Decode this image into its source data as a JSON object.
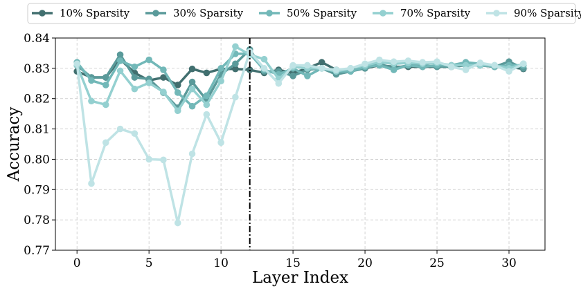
{
  "chart_data": {
    "type": "line",
    "xlabel": "Layer Index",
    "ylabel": "Accuracy",
    "xlim": [
      -1.5,
      32.5
    ],
    "ylim": [
      0.77,
      0.84
    ],
    "xticks": [
      0,
      5,
      10,
      15,
      20,
      25,
      30
    ],
    "yticks": [
      0.77,
      0.78,
      0.79,
      0.8,
      0.81,
      0.82,
      0.83,
      0.84
    ],
    "ytick_labels": [
      "0.77",
      "0.78",
      "0.79",
      "0.80",
      "0.81",
      "0.82",
      "0.83",
      "0.84"
    ],
    "grid": true,
    "legend_position": "top",
    "vline": {
      "x": 12,
      "style": "dash-dot",
      "color": "#000000"
    },
    "x": [
      0,
      1,
      2,
      3,
      4,
      5,
      6,
      7,
      8,
      9,
      10,
      11,
      12,
      13,
      14,
      15,
      16,
      17,
      18,
      19,
      20,
      21,
      22,
      23,
      24,
      25,
      26,
      27,
      28,
      29,
      30,
      31
    ],
    "series": [
      {
        "name": "10% Sparsity",
        "color": "#416f6f",
        "values": [
          0.829,
          0.827,
          0.827,
          0.833,
          0.8285,
          0.826,
          0.827,
          0.8245,
          0.8298,
          0.8285,
          0.8298,
          0.8298,
          0.8295,
          0.8285,
          0.8295,
          0.8285,
          0.83,
          0.832,
          0.8295,
          0.8298,
          0.83,
          0.831,
          0.8305,
          0.8305,
          0.8305,
          0.8305,
          0.8305,
          0.831,
          0.831,
          0.8305,
          0.8305,
          0.8298
        ]
      },
      {
        "name": "30% Sparsity",
        "color": "#5a9a9a",
        "values": [
          0.831,
          0.827,
          0.827,
          0.8345,
          0.827,
          0.8265,
          0.822,
          0.817,
          0.8255,
          0.8195,
          0.828,
          0.8315,
          0.8362,
          0.829,
          0.829,
          0.8275,
          0.8295,
          0.83,
          0.828,
          0.829,
          0.83,
          0.8315,
          0.83,
          0.831,
          0.831,
          0.8305,
          0.8305,
          0.8315,
          0.831,
          0.8305,
          0.8322,
          0.83
        ]
      },
      {
        "name": "50% Sparsity",
        "color": "#72b8b8",
        "values": [
          0.832,
          0.826,
          0.8245,
          0.8325,
          0.8305,
          0.8328,
          0.8295,
          0.822,
          0.8175,
          0.821,
          0.83,
          0.8348,
          0.8348,
          0.8295,
          0.828,
          0.83,
          0.8275,
          0.83,
          0.829,
          0.829,
          0.8305,
          0.831,
          0.8295,
          0.831,
          0.8305,
          0.831,
          0.831,
          0.832,
          0.8315,
          0.8305,
          0.831,
          0.831
        ]
      },
      {
        "name": "70% Sparsity",
        "color": "#94d0d0",
        "values": [
          0.831,
          0.8192,
          0.818,
          0.8292,
          0.8232,
          0.8252,
          0.8222,
          0.816,
          0.8232,
          0.818,
          0.8258,
          0.8372,
          0.8345,
          0.833,
          0.8265,
          0.8305,
          0.83,
          0.83,
          0.829,
          0.83,
          0.831,
          0.832,
          0.8315,
          0.8318,
          0.8315,
          0.8318,
          0.831,
          0.831,
          0.831,
          0.831,
          0.83,
          0.8315
        ]
      },
      {
        "name": "90% Sparsity",
        "color": "#bfe3e5",
        "values": [
          0.8315,
          0.792,
          0.8055,
          0.81,
          0.8085,
          0.8,
          0.7998,
          0.779,
          0.8018,
          0.8148,
          0.8055,
          0.8205,
          0.8355,
          0.83,
          0.825,
          0.831,
          0.831,
          0.83,
          0.8295,
          0.83,
          0.8315,
          0.8328,
          0.8322,
          0.8325,
          0.832,
          0.8322,
          0.8305,
          0.8295,
          0.8318,
          0.831,
          0.829,
          0.8315
        ]
      }
    ]
  }
}
